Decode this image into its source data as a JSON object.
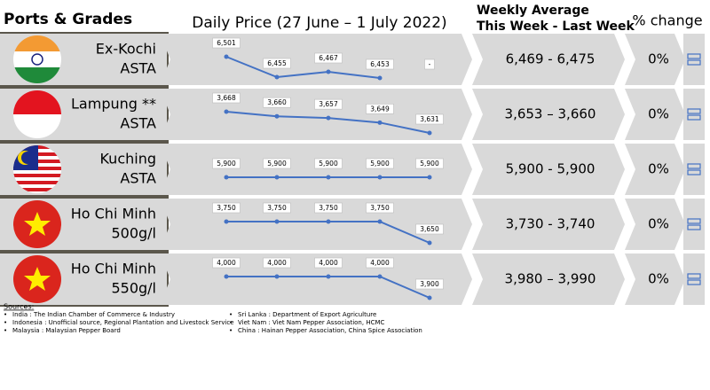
{
  "header": {
    "ports": "Ports & Grades",
    "daily": "Daily Price (27 June – 1 July 2022)",
    "weekly_1": "Weekly Average",
    "weekly_2": "This Week - Last Week",
    "change": "% change"
  },
  "rows": [
    {
      "port": "Ex-Kochi",
      "grade": "ASTA",
      "prices": [
        {
          "value": 6501,
          "label": "6,501"
        },
        {
          "value": 6455,
          "label": "6,455"
        },
        {
          "value": 6467,
          "label": "6,467"
        },
        {
          "value": 6453,
          "label": "6,453"
        },
        {
          "value": null,
          "label": "-"
        }
      ],
      "weekly": "6,469 - 6,475",
      "change": "0%"
    },
    {
      "port": "Lampung **",
      "grade": "ASTA",
      "prices": [
        {
          "value": 3668,
          "label": "3,668"
        },
        {
          "value": 3660,
          "label": "3,660"
        },
        {
          "value": 3657,
          "label": "3,657"
        },
        {
          "value": 3649,
          "label": "3,649"
        },
        {
          "value": 3631,
          "label": "3,631"
        }
      ],
      "weekly": "3,653 – 3,660",
      "change": "0%"
    },
    {
      "port": "Kuching",
      "grade": "ASTA",
      "prices": [
        {
          "value": 5900,
          "label": "5,900"
        },
        {
          "value": 5900,
          "label": "5,900"
        },
        {
          "value": 5900,
          "label": "5,900"
        },
        {
          "value": 5900,
          "label": "5,900"
        },
        {
          "value": 5900,
          "label": "5,900"
        }
      ],
      "weekly": "5,900 - 5,900",
      "change": "0%"
    },
    {
      "port": "Ho Chi Minh",
      "grade": "500g/l",
      "prices": [
        {
          "value": 3750,
          "label": "3,750"
        },
        {
          "value": 3750,
          "label": "3,750"
        },
        {
          "value": 3750,
          "label": "3,750"
        },
        {
          "value": 3750,
          "label": "3,750"
        },
        {
          "value": 3650,
          "label": "3,650"
        }
      ],
      "weekly": "3,730 - 3,740",
      "change": "0%"
    },
    {
      "port": "Ho Chi Minh",
      "grade": "550g/l",
      "prices": [
        {
          "value": 4000,
          "label": "4,000"
        },
        {
          "value": 4000,
          "label": "4,000"
        },
        {
          "value": 4000,
          "label": "4,000"
        },
        {
          "value": 4000,
          "label": "4,000"
        },
        {
          "value": 3900,
          "label": "3,900"
        }
      ],
      "weekly": "3,980 – 3,990",
      "change": "0%"
    }
  ],
  "sources": {
    "title": "Sources:",
    "left": [
      "India : The Indian Chamber of Commerce & Industry",
      "Indonesia : Unofficial source, Regional Plantation and Livestock Service",
      "Malaysia : Malaysian Pepper Board"
    ],
    "right": [
      "Sri Lanka : Department of Export Agriculture",
      "Viet Nam : Viet Nam Pepper Association, HCMC",
      "China : Hainan Pepper Association, China Spice Association"
    ]
  }
}
